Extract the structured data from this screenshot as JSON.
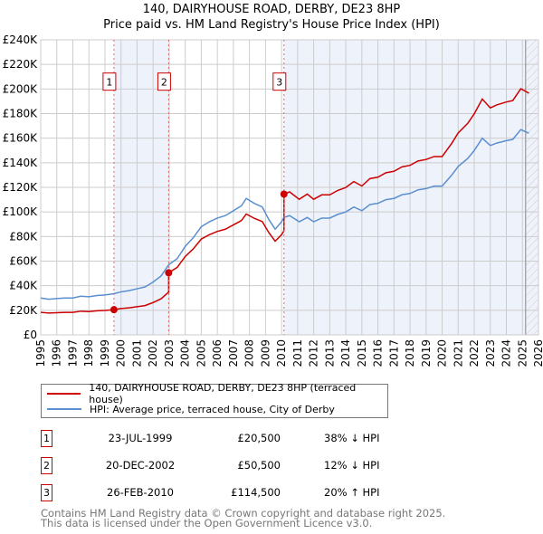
{
  "chart_data": {
    "type": "line",
    "title": "140, DAIRYHOUSE ROAD, DERBY, DE23 8HP",
    "subtitle": "Price paid vs. HM Land Registry's House Price Index (HPI)",
    "xlim": [
      1995,
      2026
    ],
    "ylim": [
      0,
      240000
    ],
    "x_ticks": [
      "1995",
      "1996",
      "1997",
      "1998",
      "1999",
      "2000",
      "2001",
      "2002",
      "2003",
      "2004",
      "2005",
      "2006",
      "2007",
      "2008",
      "2009",
      "2010",
      "2011",
      "2012",
      "2013",
      "2014",
      "2015",
      "2016",
      "2017",
      "2018",
      "2019",
      "2020",
      "2021",
      "2022",
      "2023",
      "2024",
      "2025",
      "2026"
    ],
    "y_ticks": [
      {
        "v": 0,
        "label": "£0"
      },
      {
        "v": 20000,
        "label": "£20K"
      },
      {
        "v": 40000,
        "label": "£40K"
      },
      {
        "v": 60000,
        "label": "£60K"
      },
      {
        "v": 80000,
        "label": "£80K"
      },
      {
        "v": 100000,
        "label": "£100K"
      },
      {
        "v": 120000,
        "label": "£120K"
      },
      {
        "v": 140000,
        "label": "£140K"
      },
      {
        "v": 160000,
        "label": "£160K"
      },
      {
        "v": 180000,
        "label": "£180K"
      },
      {
        "v": 200000,
        "label": "£200K"
      },
      {
        "v": 220000,
        "label": "£220K"
      },
      {
        "v": 240000,
        "label": "£240K"
      }
    ],
    "grid": true,
    "colors": {
      "property": "#cc0000",
      "hpi": "#5b8fd0",
      "shade": "#eef2fb"
    },
    "hatched_after": 2025.2,
    "hpi_series": {
      "name": "HPI: Average price, terraced house, City of Derby",
      "x": [
        1995,
        1995.5,
        1996,
        1996.5,
        1997,
        1997.5,
        1998,
        1998.5,
        1999,
        1999.56,
        2000,
        2000.5,
        2001,
        2001.5,
        2002,
        2002.5,
        2002.97,
        2003.5,
        2004,
        2004.5,
        2005,
        2005.5,
        2006,
        2006.5,
        2007,
        2007.5,
        2007.8,
        2008.3,
        2008.8,
        2009.2,
        2009.6,
        2010,
        2010.15,
        2010.5,
        2011.1,
        2011.6,
        2012,
        2012.5,
        2013,
        2013.5,
        2014,
        2014.5,
        2015,
        2015.5,
        2016,
        2016.5,
        2017,
        2017.5,
        2018,
        2018.5,
        2019,
        2019.5,
        2020,
        2020.6,
        2021,
        2021.6,
        2022,
        2022.5,
        2023,
        2023.4,
        2024,
        2024.4,
        2024.9,
        2025.4
      ],
      "y": [
        30000,
        29000,
        29500,
        30000,
        30000,
        31500,
        31000,
        32000,
        32500,
        33500,
        35000,
        36000,
        37500,
        39000,
        43000,
        48000,
        57000,
        62000,
        72000,
        79000,
        88000,
        92000,
        95000,
        97000,
        101000,
        105000,
        111000,
        107000,
        104000,
        94000,
        86000,
        92000,
        95500,
        97000,
        92000,
        95500,
        92000,
        95000,
        95000,
        98000,
        100000,
        104000,
        101000,
        106000,
        107000,
        110000,
        111000,
        114000,
        115000,
        118000,
        119000,
        121000,
        121000,
        130000,
        137000,
        143600,
        150000,
        160000,
        154000,
        156000,
        158000,
        159000,
        167000,
        164000
      ]
    },
    "property_series": {
      "name": "140, DAIRYHOUSE ROAD, DERBY, DE23 8HP (terraced house)"
    },
    "sales": [
      {
        "n": "1",
        "x": 1999.56,
        "price": 20500,
        "date": "23-JUL-1999",
        "price_label": "£20,500",
        "hpi_label": "38% ↓ HPI"
      },
      {
        "n": "2",
        "x": 2002.97,
        "price": 50500,
        "date": "20-DEC-2002",
        "price_label": "£50,500",
        "hpi_label": "12% ↓ HPI"
      },
      {
        "n": "3",
        "x": 2010.15,
        "price": 114500,
        "date": "26-FEB-2010",
        "price_label": "£114,500",
        "hpi_label": "20% ↑ HPI"
      }
    ]
  },
  "footer": {
    "line1": "Contains HM Land Registry data © Crown copyright and database right 2025.",
    "line2": "This data is licensed under the Open Government Licence v3.0."
  }
}
